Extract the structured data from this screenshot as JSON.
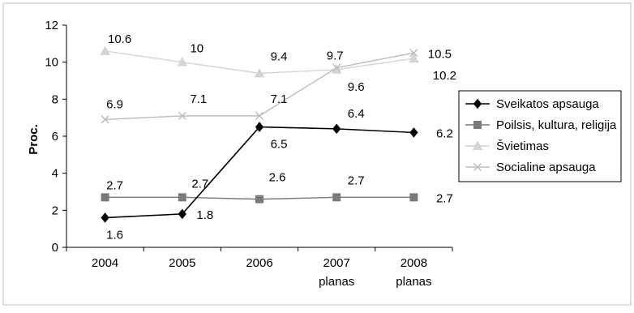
{
  "chart_data": {
    "type": "line",
    "ylabel": "Proc.",
    "ylim": [
      0,
      12
    ],
    "yticks": [
      "0",
      "2",
      "4",
      "6",
      "8",
      "10",
      "12"
    ],
    "categories": [
      {
        "line1": "2004",
        "line2": ""
      },
      {
        "line1": "2005",
        "line2": ""
      },
      {
        "line1": "2006",
        "line2": ""
      },
      {
        "line1": "2007",
        "line2": "planas"
      },
      {
        "line1": "2008",
        "line2": "planas"
      }
    ],
    "grid": false,
    "legend_position": "right",
    "series": [
      {
        "name": "Sveikatos apsauga",
        "color": "#000000",
        "marker": "diamond",
        "values": [
          1.6,
          1.8,
          6.5,
          6.4,
          6.2
        ],
        "labels": [
          "1.6",
          "1.8",
          "6.5",
          "6.4",
          "6.2"
        ]
      },
      {
        "name": "Poilsis, kultura, religija",
        "color": "#7a7a7a",
        "marker": "square",
        "values": [
          2.7,
          2.7,
          2.6,
          2.7,
          2.7
        ],
        "labels": [
          "2.7",
          "2.7",
          "2.6",
          "2.7",
          "2.7"
        ]
      },
      {
        "name": "Švietimas",
        "color": "#d4d4d4",
        "marker": "triangle",
        "values": [
          10.6,
          10,
          9.4,
          9.6,
          10.2
        ],
        "labels": [
          "10.6",
          "10",
          "9.4",
          "9.6",
          "10.2"
        ]
      },
      {
        "name": "Socialine apsauga",
        "color": "#bdbdbd",
        "marker": "x",
        "values": [
          6.9,
          7.1,
          7.1,
          9.7,
          10.5
        ],
        "labels": [
          "6.9",
          "7.1",
          "7.1",
          "9.7",
          "10.5"
        ]
      }
    ]
  }
}
